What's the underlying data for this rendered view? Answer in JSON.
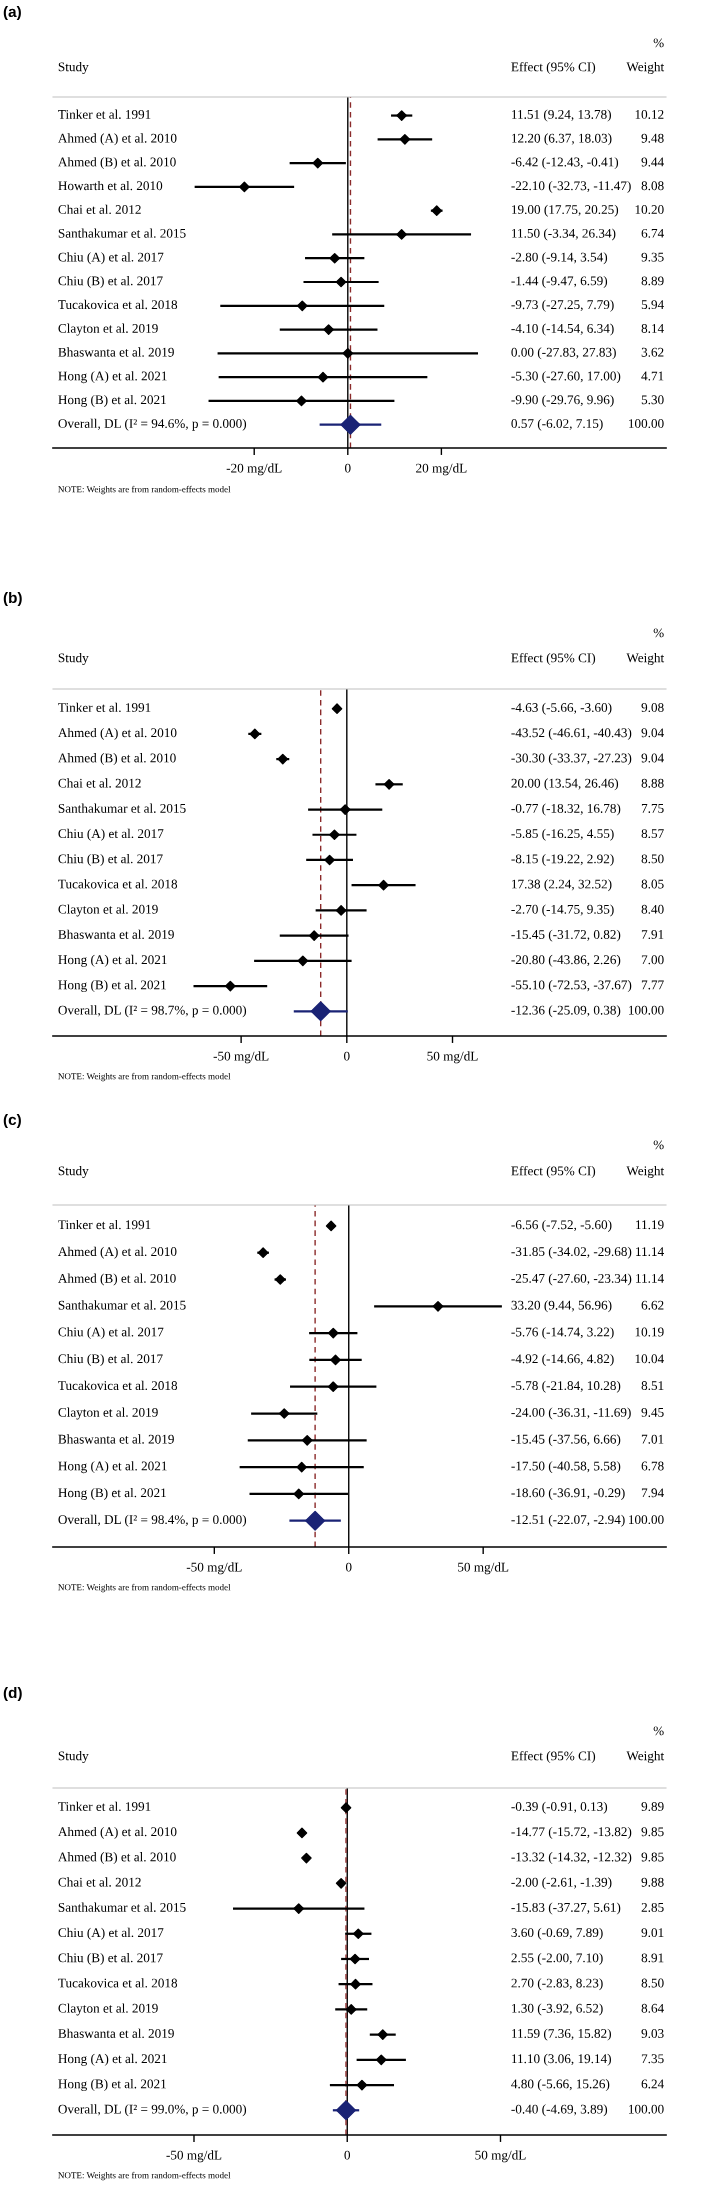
{
  "chart_data": [
    {
      "type": "scatter",
      "title": "(a)",
      "orientation": "horizontal",
      "categories": [
        "Tinker et al. 1991",
        "Ahmed (A) et al. 2010",
        "Ahmed (B) et al. 2010",
        "Howarth et al. 2010",
        "Chai et al. 2012",
        "Santhakumar et al. 2015",
        "Chiu (A) et al. 2017",
        "Chiu (B) et al. 2017",
        "Tucakovica et al. 2018",
        "Clayton et al. 2019",
        "Bhaswanta et al. 2019",
        "Hong (A) et al. 2021",
        "Hong (B) et al. 2021",
        "Overall, DL (I² = 94.6%, p = 0.000)"
      ],
      "series": [
        {
          "marker": "diamond",
          "color": "#000000",
          "values": [
            11.51,
            12.2,
            -6.42,
            -22.1,
            19.0,
            11.5,
            -2.8,
            -1.44,
            -9.73,
            -4.1,
            0.0,
            -5.3,
            -9.9,
            null
          ],
          "errors": [
            [
              9.24,
              13.78
            ],
            [
              6.37,
              18.03
            ],
            [
              -12.43,
              -0.41
            ],
            [
              -32.73,
              -11.47
            ],
            [
              17.75,
              20.25
            ],
            [
              -3.34,
              26.34
            ],
            [
              -9.14,
              3.54
            ],
            [
              -9.47,
              6.59
            ],
            [
              -27.25,
              7.79
            ],
            [
              -14.54,
              6.34
            ],
            [
              -27.83,
              27.83
            ],
            [
              -27.6,
              17.0
            ],
            [
              -29.76,
              9.96
            ],
            null
          ]
        },
        {
          "marker": "diamond",
          "color": "#1a2375",
          "values": [
            null,
            null,
            null,
            null,
            null,
            null,
            null,
            null,
            null,
            null,
            null,
            null,
            null,
            0.57
          ],
          "errors": [
            null,
            null,
            null,
            null,
            null,
            null,
            null,
            null,
            null,
            null,
            null,
            null,
            null,
            [
              -6.02,
              7.15
            ]
          ]
        }
      ],
      "xlim": [
        -63,
        68
      ],
      "xticks": [
        {
          "value": -20,
          "label": "-20 mg/dL"
        },
        0,
        {
          "value": 20,
          "label": "20 mg/dL"
        }
      ],
      "ref_lines": [
        {
          "axis": "x",
          "value": 0,
          "color": "#000000",
          "line_style": "solid"
        },
        {
          "axis": "x",
          "value": 0.57,
          "color": "#8b2a2a",
          "line_style": "dashed"
        }
      ],
      "annotations": [
        "%",
        "Study",
        "Effect (95% CI)",
        "Weight",
        "11.51 (9.24, 13.78)",
        "12.20 (6.37, 18.03)",
        "-6.42 (-12.43, -0.41)",
        "-22.10 (-32.73, -11.47)",
        "19.00 (17.75, 20.25)",
        "11.50 (-3.34, 26.34)",
        "-2.80 (-9.14, 3.54)",
        "-1.44 (-9.47, 6.59)",
        "-9.73 (-27.25, 7.79)",
        "-4.10 (-14.54, 6.34)",
        "0.00 (-27.83, 27.83)",
        "-5.30 (-27.60, 17.00)",
        "-9.90 (-29.76, 9.96)",
        "0.57 (-6.02, 7.15)",
        "10.12",
        "9.48",
        "9.44",
        "8.08",
        "10.20",
        "6.74",
        "9.35",
        "8.89",
        "5.94",
        "8.14",
        "3.62",
        "4.71",
        "5.30",
        "100.00",
        "NOTE: Weights are from random-effects model"
      ]
    },
    {
      "type": "scatter",
      "title": "(b)",
      "orientation": "horizontal",
      "categories": [
        "Tinker et al. 1991",
        "Ahmed (A) et al. 2010",
        "Ahmed (B) et al. 2010",
        "Chai et al. 2012",
        "Santhakumar et al. 2015",
        "Chiu (A) et al. 2017",
        "Chiu (B) et al. 2017",
        "Tucakovica et al. 2018",
        "Clayton et al. 2019",
        "Bhaswanta et al. 2019",
        "Hong (A) et al. 2021",
        "Hong (B) et al. 2021",
        "Overall, DL (I² = 98.7%, p = 0.000)"
      ],
      "series": [
        {
          "marker": "diamond",
          "color": "#000000",
          "values": [
            -4.63,
            -43.52,
            -30.3,
            20.0,
            -0.77,
            -5.85,
            -8.15,
            17.38,
            -2.7,
            -15.45,
            -20.8,
            -55.1,
            null
          ],
          "errors": [
            [
              -5.66,
              -3.6
            ],
            [
              -46.61,
              -40.43
            ],
            [
              -33.37,
              -27.23
            ],
            [
              13.54,
              26.46
            ],
            [
              -18.32,
              16.78
            ],
            [
              -16.25,
              4.55
            ],
            [
              -19.22,
              2.92
            ],
            [
              2.24,
              32.52
            ],
            [
              -14.75,
              9.35
            ],
            [
              -31.72,
              0.82
            ],
            [
              -43.86,
              2.26
            ],
            [
              -72.53,
              -37.67
            ],
            null
          ]
        },
        {
          "marker": "diamond",
          "color": "#1a2375",
          "values": [
            null,
            null,
            null,
            null,
            null,
            null,
            null,
            null,
            null,
            null,
            null,
            null,
            -12.36
          ],
          "errors": [
            null,
            null,
            null,
            null,
            null,
            null,
            null,
            null,
            null,
            null,
            null,
            null,
            [
              -25.09,
              0.38
            ]
          ]
        }
      ],
      "xlim": [
        -139,
        151
      ],
      "xticks": [
        {
          "value": -50,
          "label": "-50 mg/dL"
        },
        0,
        {
          "value": 50,
          "label": "50 mg/dL"
        }
      ],
      "ref_lines": [
        {
          "axis": "x",
          "value": 0,
          "color": "#000000",
          "line_style": "solid"
        },
        {
          "axis": "x",
          "value": -12.36,
          "color": "#8b2a2a",
          "line_style": "dashed"
        }
      ],
      "annotations": [
        "%",
        "Study",
        "Effect (95% CI)",
        "Weight",
        "-4.63 (-5.66, -3.60)",
        "-43.52 (-46.61, -40.43)",
        "-30.30 (-33.37, -27.23)",
        "20.00 (13.54, 26.46)",
        "-0.77 (-18.32, 16.78)",
        "-5.85 (-16.25, 4.55)",
        "-8.15 (-19.22, 2.92)",
        "17.38 (2.24, 32.52)",
        "-2.70 (-14.75, 9.35)",
        "-15.45 (-31.72, 0.82)",
        "-20.80 (-43.86, 2.26)",
        "-55.10 (-72.53, -37.67)",
        "-12.36 (-25.09, 0.38)",
        "9.08",
        "9.04",
        "9.04",
        "8.88",
        "7.75",
        "8.57",
        "8.50",
        "8.05",
        "8.40",
        "7.91",
        "7.00",
        "7.77",
        "100.00",
        "NOTE: Weights are from random-effects model"
      ]
    },
    {
      "type": "scatter",
      "title": "(c)",
      "orientation": "horizontal",
      "categories": [
        "Tinker et al. 1991",
        "Ahmed (A) et al. 2010",
        "Ahmed (B) et al. 2010",
        "Santhakumar et al. 2015",
        "Chiu (A) et al. 2017",
        "Chiu (B) et al. 2017",
        "Tucakovica et al. 2018",
        "Clayton et al. 2019",
        "Bhaswanta et al. 2019",
        "Hong (A) et al. 2021",
        "Hong (B) et al. 2021",
        "Overall, DL (I² = 98.4%, p = 0.000)"
      ],
      "series": [
        {
          "marker": "diamond",
          "color": "#000000",
          "values": [
            -6.56,
            -31.85,
            -25.47,
            33.2,
            -5.76,
            -4.92,
            -5.78,
            -24.0,
            -15.45,
            -17.5,
            -18.6,
            null
          ],
          "errors": [
            [
              -7.52,
              -5.6
            ],
            [
              -34.02,
              -29.68
            ],
            [
              -27.6,
              -23.34
            ],
            [
              9.44,
              56.96
            ],
            [
              -14.74,
              3.22
            ],
            [
              -14.66,
              4.82
            ],
            [
              -21.84,
              10.28
            ],
            [
              -36.31,
              -11.69
            ],
            [
              -37.56,
              6.66
            ],
            [
              -40.58,
              5.58
            ],
            [
              -36.91,
              -0.29
            ],
            null
          ]
        },
        {
          "marker": "diamond",
          "color": "#1a2375",
          "values": [
            null,
            null,
            null,
            null,
            null,
            null,
            null,
            null,
            null,
            null,
            null,
            -12.51
          ],
          "errors": [
            null,
            null,
            null,
            null,
            null,
            null,
            null,
            null,
            null,
            null,
            null,
            [
              -22.07,
              -2.94
            ]
          ]
        }
      ],
      "xlim": [
        -110,
        118
      ],
      "xticks": [
        {
          "value": -50,
          "label": "-50 mg/dL"
        },
        0,
        {
          "value": 50,
          "label": "50 mg/dL"
        }
      ],
      "ref_lines": [
        {
          "axis": "x",
          "value": 0,
          "color": "#000000",
          "line_style": "solid"
        },
        {
          "axis": "x",
          "value": -12.51,
          "color": "#8b2a2a",
          "line_style": "dashed"
        }
      ],
      "annotations": [
        "%",
        "Study",
        "Effect (95% CI)",
        "Weight",
        "-6.56 (-7.52, -5.60)",
        "-31.85 (-34.02, -29.68)",
        "-25.47 (-27.60, -23.34)",
        "33.20 (9.44, 56.96)",
        "-5.76 (-14.74, 3.22)",
        "-4.92 (-14.66, 4.82)",
        "-5.78 (-21.84, 10.28)",
        "-24.00 (-36.31, -11.69)",
        "-15.45 (-37.56, 6.66)",
        "-17.50 (-40.58, 5.58)",
        "-18.60 (-36.91, -0.29)",
        "-12.51 (-22.07, -2.94)",
        "11.19",
        "11.14",
        "11.14",
        "6.62",
        "10.19",
        "10.04",
        "8.51",
        "9.45",
        "7.01",
        "6.78",
        "7.94",
        "100.00",
        "NOTE: Weights are from random-effects model"
      ]
    },
    {
      "type": "scatter",
      "title": "(d)",
      "orientation": "horizontal",
      "categories": [
        "Tinker et al. 1991",
        "Ahmed (A) et al. 2010",
        "Ahmed (B) et al. 2010",
        "Chai et al. 2012",
        "Santhakumar et al. 2015",
        "Chiu (A) et al. 2017",
        "Chiu (B) et al. 2017",
        "Tucakovica et al. 2018",
        "Clayton et al. 2019",
        "Bhaswanta et al. 2019",
        "Hong (A) et al. 2021",
        "Hong (B) et al. 2021",
        "Overall, DL (I² = 99.0%, p = 0.000)"
      ],
      "series": [
        {
          "marker": "diamond",
          "color": "#000000",
          "values": [
            -0.39,
            -14.77,
            -13.32,
            -2.0,
            -15.83,
            3.6,
            2.55,
            2.7,
            1.3,
            11.59,
            11.1,
            4.8,
            null
          ],
          "errors": [
            [
              -0.91,
              0.13
            ],
            [
              -15.72,
              -13.82
            ],
            [
              -14.32,
              -12.32
            ],
            [
              -2.61,
              -1.39
            ],
            [
              -37.27,
              5.61
            ],
            [
              -0.69,
              7.89
            ],
            [
              -2.0,
              7.1
            ],
            [
              -2.83,
              8.23
            ],
            [
              -3.92,
              6.52
            ],
            [
              7.36,
              15.82
            ],
            [
              3.06,
              19.14
            ],
            [
              -5.66,
              15.26
            ],
            null
          ]
        },
        {
          "marker": "diamond",
          "color": "#1a2375",
          "values": [
            null,
            null,
            null,
            null,
            null,
            null,
            null,
            null,
            null,
            null,
            null,
            null,
            -0.4
          ],
          "errors": [
            null,
            null,
            null,
            null,
            null,
            null,
            null,
            null,
            null,
            null,
            null,
            null,
            [
              -4.69,
              3.89
            ]
          ]
        }
      ],
      "xlim": [
        -96,
        104
      ],
      "xticks": [
        {
          "value": -50,
          "label": "-50 mg/dL"
        },
        0,
        {
          "value": 50,
          "label": "50 mg/dL"
        }
      ],
      "ref_lines": [
        {
          "axis": "x",
          "value": 0,
          "color": "#000000",
          "line_style": "solid"
        },
        {
          "axis": "x",
          "value": -0.4,
          "color": "#8b2a2a",
          "line_style": "dashed"
        }
      ],
      "annotations": [
        "%",
        "Study",
        "Effect (95% CI)",
        "Weight",
        "-0.39 (-0.91, 0.13)",
        "-14.77 (-15.72, -13.82)",
        "-13.32 (-14.32, -12.32)",
        "-2.00 (-2.61, -1.39)",
        "-15.83 (-37.27, 5.61)",
        "3.60 (-0.69, 7.89)",
        "2.55 (-2.00, 7.10)",
        "2.70 (-2.83, 8.23)",
        "1.30 (-3.92, 6.52)",
        "11.59 (7.36, 15.82)",
        "11.10 (3.06, 19.14)",
        "4.80 (-5.66, 15.26)",
        "-0.40 (-4.69, 3.89)",
        "9.89",
        "9.85",
        "9.85",
        "9.88",
        "2.85",
        "9.01",
        "8.91",
        "8.50",
        "8.64",
        "9.03",
        "7.35",
        "6.24",
        "100.00",
        "NOTE: Weights are from random-effects model"
      ]
    }
  ]
}
